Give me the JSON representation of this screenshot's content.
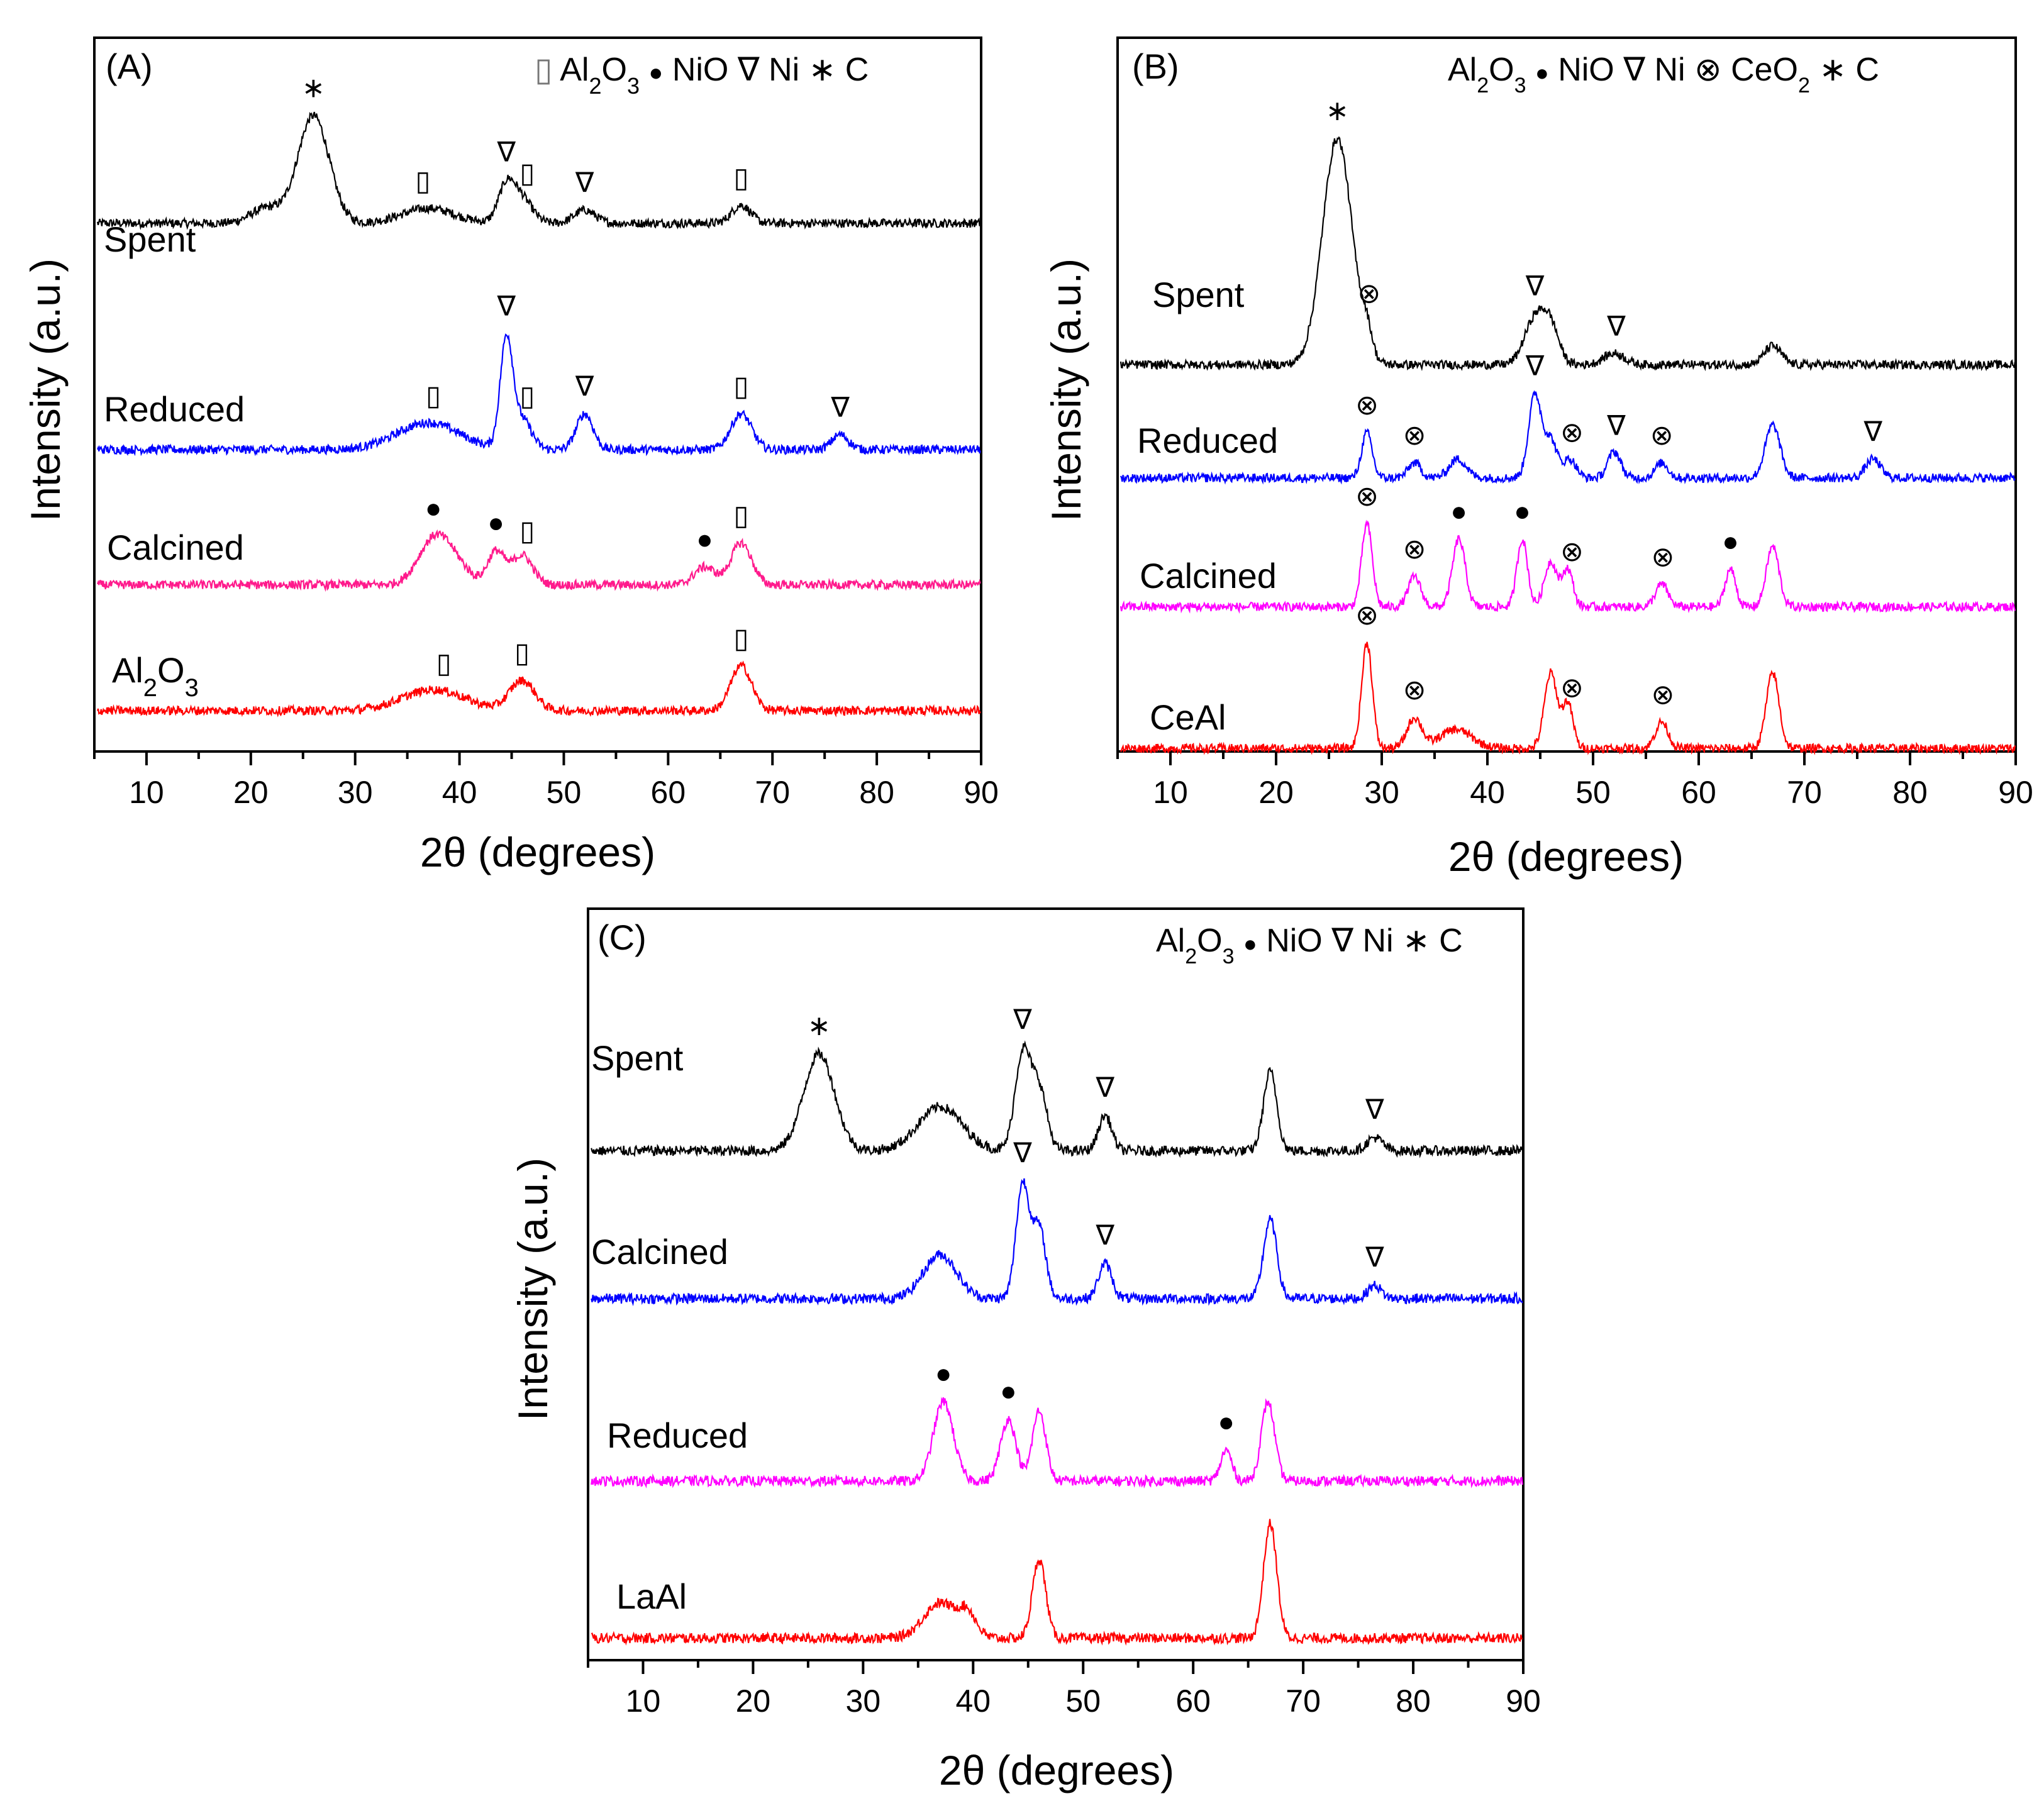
{
  "figure": {
    "legend_symbols": {
      "Al2O3": "▯",
      "NiO": "●",
      "Ni": "∇",
      "C": "∗",
      "CeO2": "⊗"
    }
  },
  "chart_data": [
    {
      "type": "line",
      "panel_label": "(A)",
      "xlabel": "2θ (degrees)",
      "ylabel": "Intensity (a.u.)",
      "xlim": [
        5,
        90
      ],
      "xticks": [
        "10",
        "20",
        "30",
        "40",
        "50",
        "60",
        "70",
        "80",
        "90"
      ],
      "legend": [
        {
          "symbol": "▯",
          "text": "Al2O3"
        },
        {
          "symbol": "●",
          "text": "NiO"
        },
        {
          "symbol": "∇",
          "text": "Ni"
        },
        {
          "symbol": "∗",
          "text": "C"
        }
      ],
      "series": [
        {
          "name": "Spent",
          "color": "#000000",
          "peaks": [
            [
              26,
              1.8,
              1.5
            ],
            [
              37,
              0.25,
              2.5
            ],
            [
              44.5,
              0.6,
              0.8
            ],
            [
              46,
              0.4,
              1.0
            ],
            [
              52,
              0.22,
              1.0
            ],
            [
              67,
              0.3,
              0.9
            ],
            [
              21.5,
              0.25,
              1.5
            ]
          ],
          "markers": [
            {
              "x": 26,
              "symbol": "∗"
            },
            {
              "x": 36.5,
              "symbol": "▯"
            },
            {
              "x": 44.5,
              "symbol": "∇"
            },
            {
              "x": 46.5,
              "symbol": "▯"
            },
            {
              "x": 52,
              "symbol": "∇"
            },
            {
              "x": 67,
              "symbol": "▯"
            }
          ]
        },
        {
          "name": "Reduced",
          "color": "#0000ff",
          "peaks": [
            [
              37,
              0.45,
              3.0
            ],
            [
              44.5,
              1.8,
              0.6
            ],
            [
              46,
              0.5,
              0.9
            ],
            [
              52,
              0.6,
              0.8
            ],
            [
              67,
              0.6,
              1.0
            ],
            [
              76.5,
              0.25,
              0.8
            ]
          ],
          "markers": [
            {
              "x": 37.5,
              "symbol": "▯"
            },
            {
              "x": 44.5,
              "symbol": "∇"
            },
            {
              "x": 46.5,
              "symbol": "▯"
            },
            {
              "x": 52,
              "symbol": "∇"
            },
            {
              "x": 67,
              "symbol": "▯"
            },
            {
              "x": 76.5,
              "symbol": "∇"
            }
          ]
        },
        {
          "name": "Calcined",
          "color": "#ff1a8c",
          "peaks": [
            [
              37.5,
              0.7,
              1.5
            ],
            [
              43.5,
              0.55,
              0.8
            ],
            [
              46,
              0.5,
              1.0
            ],
            [
              63.5,
              0.3,
              1.0
            ],
            [
              67,
              0.7,
              1.0
            ],
            [
              39.5,
              0.3,
              1.5
            ]
          ],
          "markers": [
            {
              "x": 37.5,
              "symbol": "●"
            },
            {
              "x": 43.5,
              "symbol": "●"
            },
            {
              "x": 46.5,
              "symbol": "▯"
            },
            {
              "x": 63.5,
              "symbol": "●"
            },
            {
              "x": 67,
              "symbol": "▯"
            }
          ]
        },
        {
          "name": "Al2O3",
          "color": "#ff0000",
          "peaks": [
            [
              37.5,
              0.35,
              3.0
            ],
            [
              46,
              0.5,
              1.2
            ],
            [
              67,
              0.75,
              1.0
            ]
          ],
          "markers": [
            {
              "x": 38.5,
              "symbol": "▯"
            },
            {
              "x": 46,
              "symbol": "▯"
            },
            {
              "x": 67,
              "symbol": "▯"
            }
          ]
        }
      ]
    },
    {
      "type": "line",
      "panel_label": "(B)",
      "xlabel": "2θ (degrees)",
      "ylabel": "Intensity (a.u.)",
      "xlim": [
        5,
        90
      ],
      "xticks": [
        "10",
        "20",
        "30",
        "40",
        "50",
        "60",
        "70",
        "80",
        "90"
      ],
      "legend": [
        {
          "symbol": "",
          "text": "Al2O3"
        },
        {
          "symbol": "●",
          "text": "NiO"
        },
        {
          "symbol": "∇",
          "text": "Ni"
        },
        {
          "symbol": "⊗",
          "text": "CeO2"
        },
        {
          "symbol": "∗",
          "text": "C"
        }
      ],
      "series": [
        {
          "name": "Spent",
          "color": "#000000",
          "peaks": [
            [
              25.8,
              3.0,
              1.4
            ],
            [
              28.6,
              0.3,
              0.5
            ],
            [
              44.5,
              0.6,
              1.0
            ],
            [
              46,
              0.45,
              0.8
            ],
            [
              52,
              0.15,
              1.0
            ],
            [
              67,
              0.25,
              0.8
            ]
          ],
          "markers": [
            {
              "x": 25.8,
              "symbol": "∗"
            },
            {
              "x": 28.8,
              "symbol": "⊗"
            },
            {
              "x": 44.5,
              "symbol": "∇"
            },
            {
              "x": 52.2,
              "symbol": "∇"
            }
          ]
        },
        {
          "name": "Reduced",
          "color": "#0000ff",
          "peaks": [
            [
              28.6,
              0.6,
              0.5
            ],
            [
              33.1,
              0.2,
              0.6
            ],
            [
              37.2,
              0.25,
              0.8
            ],
            [
              44.5,
              1.1,
              0.6
            ],
            [
              46,
              0.5,
              0.6
            ],
            [
              47.8,
              0.25,
              0.6
            ],
            [
              52,
              0.35,
              0.6
            ],
            [
              56.5,
              0.2,
              0.6
            ],
            [
              67,
              0.7,
              0.7
            ],
            [
              76.5,
              0.25,
              0.7
            ]
          ],
          "markers": [
            {
              "x": 28.6,
              "symbol": "⊗"
            },
            {
              "x": 33.1,
              "symbol": "⊗"
            },
            {
              "x": 44.5,
              "symbol": "∇"
            },
            {
              "x": 48,
              "symbol": "⊗"
            },
            {
              "x": 52.2,
              "symbol": "∇"
            },
            {
              "x": 56.5,
              "symbol": "⊗"
            },
            {
              "x": 76.5,
              "symbol": "∇"
            }
          ]
        },
        {
          "name": "Calcined",
          "color": "#ff00ff",
          "peaks": [
            [
              28.6,
              1.1,
              0.5
            ],
            [
              33.1,
              0.4,
              0.6
            ],
            [
              37.3,
              0.9,
              0.6
            ],
            [
              43.3,
              0.9,
              0.5
            ],
            [
              46,
              0.6,
              0.6
            ],
            [
              47.6,
              0.5,
              0.5
            ],
            [
              56.5,
              0.3,
              0.6
            ],
            [
              63,
              0.5,
              0.5
            ],
            [
              67,
              0.8,
              0.6
            ]
          ],
          "markers": [
            {
              "x": 28.6,
              "symbol": "⊗"
            },
            {
              "x": 33.1,
              "symbol": "⊗"
            },
            {
              "x": 37.3,
              "symbol": "●"
            },
            {
              "x": 43.3,
              "symbol": "●"
            },
            {
              "x": 48,
              "symbol": "⊗"
            },
            {
              "x": 56.6,
              "symbol": "⊗"
            },
            {
              "x": 63,
              "symbol": "●"
            }
          ]
        },
        {
          "name": "CeAl",
          "color": "#ff0000",
          "peaks": [
            [
              28.6,
              1.4,
              0.5
            ],
            [
              33.1,
              0.4,
              0.7
            ],
            [
              37,
              0.25,
              1.5
            ],
            [
              46,
              1.0,
              0.6
            ],
            [
              47.6,
              0.6,
              0.5
            ],
            [
              56.5,
              0.35,
              0.6
            ],
            [
              67,
              1.0,
              0.6
            ]
          ],
          "markers": [
            {
              "x": 28.6,
              "symbol": "⊗"
            },
            {
              "x": 33.1,
              "symbol": "⊗"
            },
            {
              "x": 48,
              "symbol": "⊗"
            },
            {
              "x": 56.6,
              "symbol": "⊗"
            }
          ]
        }
      ]
    },
    {
      "type": "line",
      "panel_label": "(C)",
      "xlabel": "2θ (degrees)",
      "ylabel": "Intensity (a.u.)",
      "xlim": [
        5,
        90
      ],
      "xticks": [
        "10",
        "20",
        "30",
        "40",
        "50",
        "60",
        "70",
        "80",
        "90"
      ],
      "legend": [
        {
          "symbol": "",
          "text": "Al2O3"
        },
        {
          "symbol": "●",
          "text": "NiO"
        },
        {
          "symbol": "∇",
          "text": "Ni"
        },
        {
          "symbol": "∗",
          "text": "C"
        }
      ],
      "series": [
        {
          "name": "Spent",
          "color": "#000000",
          "peaks": [
            [
              26,
              1.1,
              1.4
            ],
            [
              37,
              0.5,
              2.0
            ],
            [
              44.5,
              1.1,
              0.7
            ],
            [
              46,
              0.7,
              0.7
            ],
            [
              52,
              0.4,
              0.6
            ],
            [
              67,
              0.9,
              0.6
            ],
            [
              76.5,
              0.15,
              0.7
            ]
          ],
          "markers": [
            {
              "x": 26,
              "symbol": "∗"
            },
            {
              "x": 44.5,
              "symbol": "∇"
            },
            {
              "x": 52,
              "symbol": "∇"
            },
            {
              "x": 76.5,
              "symbol": "∇"
            }
          ]
        },
        {
          "name": "Calcined",
          "color": "#0000ff",
          "peaks": [
            [
              37,
              0.5,
              1.5
            ],
            [
              44.5,
              1.3,
              0.6
            ],
            [
              46,
              0.8,
              0.6
            ],
            [
              52,
              0.4,
              0.6
            ],
            [
              67,
              0.9,
              0.6
            ],
            [
              76.5,
              0.15,
              0.6
            ]
          ],
          "markers": [
            {
              "x": 44.5,
              "symbol": "∇"
            },
            {
              "x": 52,
              "symbol": "∇"
            },
            {
              "x": 76.5,
              "symbol": "∇"
            }
          ]
        },
        {
          "name": "Reduced",
          "color": "#ff00ff",
          "peaks": [
            [
              37.3,
              0.9,
              0.9
            ],
            [
              43.2,
              0.7,
              0.7
            ],
            [
              46,
              0.8,
              0.6
            ],
            [
              63,
              0.35,
              0.5
            ],
            [
              66.8,
              0.9,
              0.6
            ]
          ],
          "markers": [
            {
              "x": 37.3,
              "symbol": "●"
            },
            {
              "x": 43.2,
              "symbol": "●"
            },
            {
              "x": 63,
              "symbol": "●"
            }
          ]
        },
        {
          "name": "LaAl",
          "color": "#ff0000",
          "peaks": [
            [
              37,
              0.4,
              1.5
            ],
            [
              39.5,
              0.25,
              0.8
            ],
            [
              46,
              0.9,
              0.6
            ],
            [
              67,
              1.3,
              0.6
            ]
          ],
          "markers": []
        }
      ]
    }
  ]
}
